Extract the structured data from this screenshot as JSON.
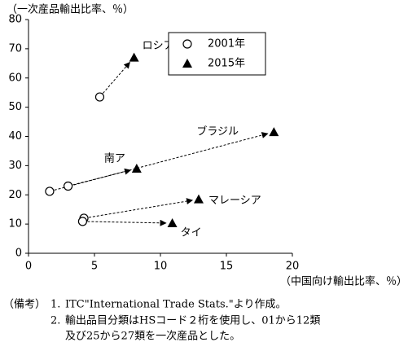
{
  "chart_data": {
    "type": "scatter",
    "y_label": "（一次産品輸出比率、％）",
    "x_label": "（中国向け輸出比率、％）",
    "labels": [
      "ロシア",
      "南ア",
      "ブラジル",
      "マレーシア",
      "タイ"
    ],
    "series": [
      {
        "name": "2001年",
        "color": "#000000",
        "marker": "circle",
        "x": [
          5.4,
          3.0,
          1.6,
          4.2,
          4.1
        ],
        "y": [
          53.5,
          23,
          21.2,
          12,
          10.9
        ]
      },
      {
        "name": "2015年",
        "color": "#000000",
        "marker": "triangle",
        "x": [
          8.0,
          8.2,
          18.6,
          12.9,
          10.9
        ],
        "y": [
          67,
          29,
          41.5,
          18.5,
          10.3
        ]
      }
    ],
    "xlim": [
      0,
      20
    ],
    "xticks": [
      0,
      5,
      10,
      15,
      20
    ],
    "ylim": [
      0,
      80
    ],
    "yticks": [
      0,
      10,
      20,
      30,
      40,
      50,
      60,
      70,
      80
    ],
    "legend": "upper center"
  },
  "notes": {
    "head": "（備考）",
    "items": [
      {
        "number": "1.",
        "lines": [
          "ITC\"International Trade Stats.\"より作成。"
        ]
      },
      {
        "number": "2.",
        "lines": [
          "輸出品目分類はHSコード２桁を使用し、01から12類",
          "及び25から27類を一次産品とした。"
        ]
      }
    ]
  }
}
